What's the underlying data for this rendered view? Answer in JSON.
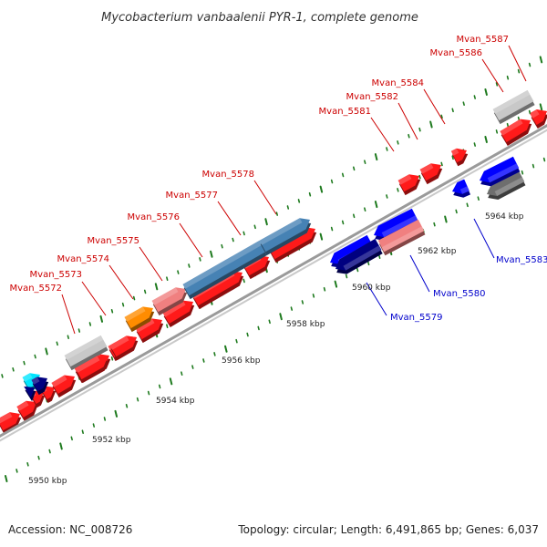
{
  "title": "Mycobacterium vanbaalenii PYR-1, complete genome",
  "accession": "Accession: NC_008726",
  "summary": "Topology: circular; Length: 6,491,865 bp; Genes: 6,037",
  "ticks": [
    {
      "kbp": 5950,
      "label": "5950 kbp"
    },
    {
      "kbp": 5952,
      "label": "5952 kbp"
    },
    {
      "kbp": 5954,
      "label": "5954 kbp"
    },
    {
      "kbp": 5956,
      "label": "5956 kbp"
    },
    {
      "kbp": 5958,
      "label": "5958 kbp"
    },
    {
      "kbp": 5960,
      "label": "5960 kbp"
    },
    {
      "kbp": 5962,
      "label": "5962 kbp"
    },
    {
      "kbp": 5964,
      "label": "5964 kbp"
    }
  ],
  "colors": {
    "backbone": "#9a9a9a",
    "forward_label": "#cc0000",
    "reverse_label": "#0000cc",
    "tick": "#1e7a1e",
    "leader_forward": "#cc0000",
    "leader_reverse": "#0000cc"
  },
  "genes": [
    {
      "name": "Mvan_5572",
      "strand": "forward",
      "color": "#c8c8c8"
    },
    {
      "name": "Mvan_5573",
      "strand": "forward",
      "color": "#ff1a1a"
    },
    {
      "name": "Mvan_5574",
      "strand": "forward",
      "color": "#ff1a1a"
    },
    {
      "name": "Mvan_5575",
      "strand": "forward",
      "color": "#ff8c00"
    },
    {
      "name": "Mvan_5576",
      "strand": "forward",
      "color": "#f08080"
    },
    {
      "name": "Mvan_5577",
      "strand": "forward",
      "color": "#4682b4"
    },
    {
      "name": "Mvan_5578",
      "strand": "forward",
      "color": "#4682b4"
    },
    {
      "name": "Mvan_5579",
      "strand": "reverse",
      "color": "#000080"
    },
    {
      "name": "Mvan_5580",
      "strand": "reverse",
      "color": "#f08080"
    },
    {
      "name": "Mvan_5581",
      "strand": "forward",
      "color": "#ff1a1a"
    },
    {
      "name": "Mvan_5582",
      "strand": "forward",
      "color": "#ff1a1a"
    },
    {
      "name": "Mvan_5583",
      "strand": "reverse",
      "color": "#0000ff"
    },
    {
      "name": "Mvan_5584",
      "strand": "forward",
      "color": "#ff1a1a"
    },
    {
      "name": "Mvan_5586",
      "strand": "forward",
      "color": "#c8c8c8"
    },
    {
      "name": "Mvan_5587",
      "strand": "forward",
      "color": "#ff1a1a"
    }
  ]
}
